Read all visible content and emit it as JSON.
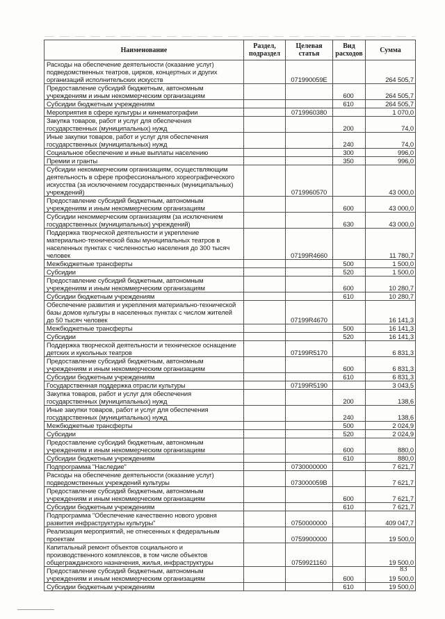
{
  "page": {
    "page_number": "83"
  },
  "table": {
    "headers": {
      "name": "Наименование",
      "razdel": "Раздел, подраздел",
      "target": "Целевая статья",
      "vid": "Вид расходов",
      "summa": "Сумма"
    },
    "rows": [
      {
        "name": "Расходы на обеспечение деятельности (оказание услуг)\nподведомственных театров, цирков, концертных и других\nорганизаций исполнительских искусств",
        "razdel": "",
        "target": "071990059E",
        "vid": "",
        "summa": "264 505,7"
      },
      {
        "name": "Предоставление субсидий бюджетным, автономным\nучреждениям и иным некоммерческим организациям",
        "razdel": "",
        "target": "",
        "vid": "600",
        "summa": "264 505,7"
      },
      {
        "name": "Субсидии бюджетным учреждениям",
        "razdel": "",
        "target": "",
        "vid": "610",
        "summa": "264 505,7"
      },
      {
        "name": "Мероприятия в сфере культуры и кинематографии",
        "razdel": "",
        "target": "0719960380",
        "vid": "",
        "summa": "1 070,0"
      },
      {
        "name": "Закупка товаров, работ и услуг для обеспечения\nгосударственных (муниципальных) нужд",
        "razdel": "",
        "target": "",
        "vid": "200",
        "summa": "74,0"
      },
      {
        "name": "Иные закупки товаров, работ и услуг для обеспечения\nгосударственных (муниципальных) нужд",
        "razdel": "",
        "target": "",
        "vid": "240",
        "summa": "74,0"
      },
      {
        "name": "Социальное обеспечение и иные выплаты населению",
        "razdel": "",
        "target": "",
        "vid": "300",
        "summa": "996,0"
      },
      {
        "name": "Премии и гранты",
        "razdel": "",
        "target": "",
        "vid": "350",
        "summa": "996,0"
      },
      {
        "name": "Субсидии некоммерческим организациям, осуществляющим\nдеятельность в сфере профессионального хореографического\nискусства (за исключением государственных (муниципальных)\nучреждений)",
        "razdel": "",
        "target": "0719960570",
        "vid": "",
        "summa": "43 000,0"
      },
      {
        "name": "Предоставление субсидий бюджетным, автономным\nучреждениям и иным некоммерческим организациям",
        "razdel": "",
        "target": "",
        "vid": "600",
        "summa": "43 000,0"
      },
      {
        "name": "Субсидии некоммерческим организациям (за исключением\nгосударственных (муниципальных) учреждений)",
        "razdel": "",
        "target": "",
        "vid": "630",
        "summa": "43 000,0"
      },
      {
        "name": "Поддержка творческой деятельности и укрепление\nматериально-технической базы муниципальных театров в\nнаселенных пунктах с численностью населения до 300 тысяч\nчеловек",
        "razdel": "",
        "target": "07199R4660",
        "vid": "",
        "summa": "11 780,7"
      },
      {
        "name": "Межбюджетные трансферты",
        "razdel": "",
        "target": "",
        "vid": "500",
        "summa": "1 500,0"
      },
      {
        "name": "Субсидии",
        "razdel": "",
        "target": "",
        "vid": "520",
        "summa": "1 500,0"
      },
      {
        "name": "Предоставление субсидий бюджетным, автономным\nучреждениям и иным некоммерческим организациям",
        "razdel": "",
        "target": "",
        "vid": "600",
        "summa": "10 280,7"
      },
      {
        "name": "Субсидии бюджетным учреждениям",
        "razdel": "",
        "target": "",
        "vid": "610",
        "summa": "10 280,7"
      },
      {
        "name": "Обеспечение развития и укрепления материально-технической\nбазы домов культуры в населенных пунктах с числом жителей\nдо 50 тысяч человек",
        "razdel": "",
        "target": "07199R4670",
        "vid": "",
        "summa": "16 141,3"
      },
      {
        "name": "Межбюджетные трансферты",
        "razdel": "",
        "target": "",
        "vid": "500",
        "summa": "16 141,3"
      },
      {
        "name": "Субсидии",
        "razdel": "",
        "target": "",
        "vid": "520",
        "summa": "16 141,3"
      },
      {
        "name": "Поддержка творческой деятельности и техническое оснащение\nдетских и кукольных театров",
        "razdel": "",
        "target": "07199R5170",
        "vid": "",
        "summa": "6 831,3"
      },
      {
        "name": "Предоставление субсидий бюджетным, автономным\nучреждениям и иным некоммерческим организациям",
        "razdel": "",
        "target": "",
        "vid": "600",
        "summa": "6 831,3"
      },
      {
        "name": "Субсидии бюджетным учреждениям",
        "razdel": "",
        "target": "",
        "vid": "610",
        "summa": "6 831,3"
      },
      {
        "name": "Государственная поддержка отрасли культуры",
        "razdel": "",
        "target": "07199R5190",
        "vid": "",
        "summa": "3 043,5"
      },
      {
        "name": "Закупка товаров, работ и услуг для обеспечения\nгосударственных (муниципальных) нужд",
        "razdel": "",
        "target": "",
        "vid": "200",
        "summa": "138,6"
      },
      {
        "name": "Иные закупки товаров, работ и услуг для обеспечения\nгосударственных (муниципальных) нужд",
        "razdel": "",
        "target": "",
        "vid": "240",
        "summa": "138,6"
      },
      {
        "name": "Межбюджетные трансферты",
        "razdel": "",
        "target": "",
        "vid": "500",
        "summa": "2 024,9"
      },
      {
        "name": "Субсидии",
        "razdel": "",
        "target": "",
        "vid": "520",
        "summa": "2 024,9"
      },
      {
        "name": "Предоставление субсидий бюджетным, автономным\nучреждениям и иным некоммерческим организациям",
        "razdel": "",
        "target": "",
        "vid": "600",
        "summa": "880,0"
      },
      {
        "name": "Субсидии бюджетным учреждениям",
        "razdel": "",
        "target": "",
        "vid": "610",
        "summa": "880,0"
      },
      {
        "name": "Подпрограмма \"Наследие\"",
        "razdel": "",
        "target": "0730000000",
        "vid": "",
        "summa": "7 621,7"
      },
      {
        "name": "Расходы на обеспечение деятельности (оказание услуг)\nподведомственных учреждений культуры",
        "razdel": "",
        "target": "073000059B",
        "vid": "",
        "summa": "7 621,7"
      },
      {
        "name": "Предоставление субсидий бюджетным, автономным\nучреждениям и иным некоммерческим организациям",
        "razdel": "",
        "target": "",
        "vid": "600",
        "summa": "7 621,7"
      },
      {
        "name": "Субсидии бюджетным учреждениям",
        "razdel": "",
        "target": "",
        "vid": "610",
        "summa": "7 621,7"
      },
      {
        "name": "Подпрограмма \"Обеспечение качественно нового уровня\nразвития инфраструктуры культуры\"",
        "razdel": "",
        "target": "0750000000",
        "vid": "",
        "summa": "409 047,7"
      },
      {
        "name": "Реализация мероприятий, не отнесенных к федеральным\nпроектам",
        "razdel": "",
        "target": "0759900000",
        "vid": "",
        "summa": "19 500,0"
      },
      {
        "name": "Капитальный ремонт объектов социального и\nпроизводственного комплексов, в том числе объектов\nобщегражданского назначения, жилья, инфраструктуры",
        "razdel": "",
        "target": "0759921160",
        "vid": "",
        "summa": "19 500,0"
      },
      {
        "name": "Предоставление субсидий бюджетным, автономным\nучреждениям и иным некоммерческим организациям",
        "razdel": "",
        "target": "",
        "vid": "600",
        "summa": "19 500,0"
      },
      {
        "name": "Субсидии бюджетным учреждениям",
        "razdel": "",
        "target": "",
        "vid": "610",
        "summa": "19 500,0"
      }
    ]
  }
}
